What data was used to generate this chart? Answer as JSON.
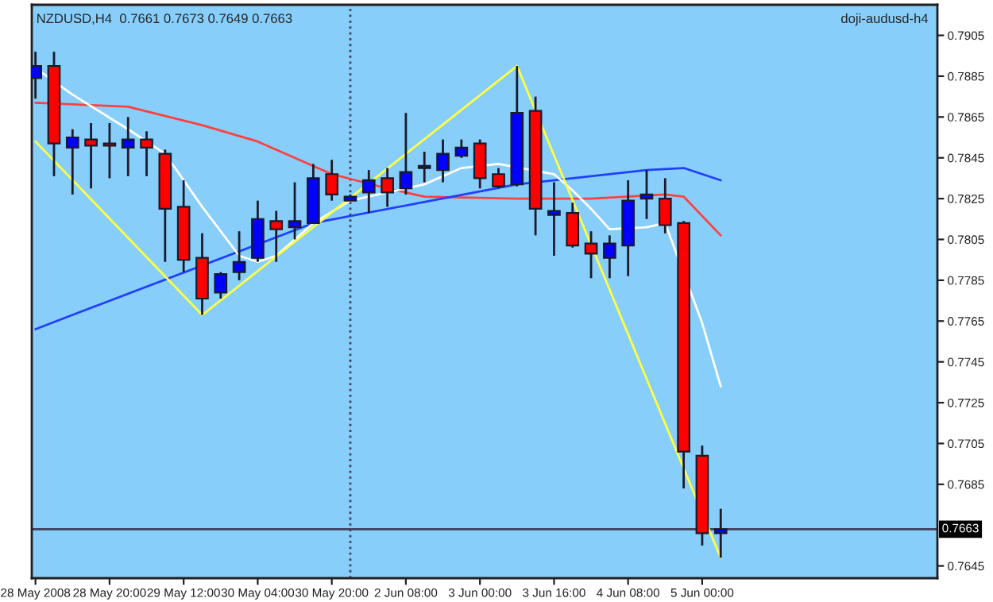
{
  "chart_data": {
    "type": "candlestick",
    "title": "NZDUSD,H4  0.7661 0.7673 0.7649 0.7663",
    "annotations": [
      "doji-audusd-h4"
    ],
    "categories": [
      "28 May 2008",
      null,
      null,
      null,
      "28 May 20:00",
      null,
      null,
      null,
      "29 May 12:00",
      null,
      null,
      null,
      "30 May 04:00",
      null,
      null,
      null,
      "30 May 20:00",
      null,
      null,
      null,
      "2 Jun 08:00",
      null,
      null,
      null,
      "3 Jun 00:00",
      null,
      null,
      null,
      "3 Jun 16:00",
      null,
      null,
      null,
      "4 Jun 08:00",
      null,
      null,
      null,
      "5 Jun 00:00",
      null
    ],
    "ohlc": [
      [
        0.7884,
        0.7897,
        0.7874,
        0.789
      ],
      [
        0.789,
        0.7897,
        0.7836,
        0.7852
      ],
      [
        0.785,
        0.7859,
        0.7827,
        0.7855
      ],
      [
        0.7854,
        0.7862,
        0.783,
        0.7851
      ],
      [
        0.7852,
        0.7862,
        0.7835,
        0.7851
      ],
      [
        0.785,
        0.7865,
        0.7836,
        0.7854
      ],
      [
        0.7854,
        0.7858,
        0.7836,
        0.785
      ],
      [
        0.7847,
        0.7849,
        0.7794,
        0.782
      ],
      [
        0.7821,
        0.7834,
        0.7789,
        0.7795
      ],
      [
        0.7796,
        0.7808,
        0.7768,
        0.7776
      ],
      [
        0.7779,
        0.7789,
        0.7776,
        0.7788
      ],
      [
        0.7789,
        0.7809,
        0.7785,
        0.7794
      ],
      [
        0.7796,
        0.7824,
        0.7794,
        0.7815
      ],
      [
        0.7814,
        0.7819,
        0.7794,
        0.781
      ],
      [
        0.7811,
        0.7833,
        0.7805,
        0.7814
      ],
      [
        0.7813,
        0.7842,
        0.7813,
        0.7835
      ],
      [
        0.7837,
        0.7844,
        0.7824,
        0.7827
      ],
      [
        0.7824,
        0.7827,
        0.7824,
        0.7826
      ],
      [
        0.7828,
        0.7839,
        0.7818,
        0.7834
      ],
      [
        0.7835,
        0.784,
        0.7821,
        0.7828
      ],
      [
        0.783,
        0.7867,
        0.7827,
        0.7838
      ],
      [
        0.784,
        0.7848,
        0.7833,
        0.7841
      ],
      [
        0.7839,
        0.7854,
        0.7833,
        0.7847
      ],
      [
        0.7846,
        0.7854,
        0.7845,
        0.785
      ],
      [
        0.7852,
        0.7854,
        0.783,
        0.7835
      ],
      [
        0.7837,
        0.784,
        0.783,
        0.7831
      ],
      [
        0.7832,
        0.789,
        0.7831,
        0.7867
      ],
      [
        0.7868,
        0.7875,
        0.7807,
        0.782
      ],
      [
        0.7817,
        0.7833,
        0.7797,
        0.7819
      ],
      [
        0.7818,
        0.7823,
        0.7801,
        0.7802
      ],
      [
        0.7803,
        0.7809,
        0.7786,
        0.7798
      ],
      [
        0.7796,
        0.7807,
        0.7786,
        0.7803
      ],
      [
        0.7802,
        0.7834,
        0.7787,
        0.7824
      ],
      [
        0.7825,
        0.7839,
        0.7815,
        0.7827
      ],
      [
        0.7825,
        0.7835,
        0.7808,
        0.7812
      ],
      [
        0.7813,
        0.7814,
        0.7683,
        0.7701
      ],
      [
        0.7699,
        0.7704,
        0.7655,
        0.7661
      ],
      [
        0.7661,
        0.7673,
        0.7649,
        0.7663
      ]
    ],
    "series": [
      {
        "type": "line",
        "color": "#ff4040",
        "values": [
          0.7872,
          null,
          null,
          null,
          null,
          0.787,
          null,
          null,
          null,
          0.7861,
          null,
          null,
          0.7853,
          null,
          null,
          null,
          0.7837,
          null,
          null,
          0.783,
          null,
          0.7826,
          null,
          null,
          null,
          null,
          0.7825,
          null,
          null,
          null,
          0.7825,
          null,
          null,
          null,
          0.7827,
          0.7826,
          null,
          0.7807
        ]
      },
      {
        "type": "line",
        "color": "#2040ff",
        "values": [
          0.7761,
          null,
          0.7768,
          null,
          null,
          null,
          null,
          null,
          null,
          null,
          null,
          null,
          null,
          null,
          null,
          0.7813,
          null,
          null,
          null,
          null,
          null,
          null,
          null,
          null,
          null,
          null,
          0.7832,
          null,
          null,
          null,
          0.7836,
          null,
          null,
          0.7839,
          null,
          0.784,
          null,
          0.7834
        ]
      },
      {
        "type": "line",
        "color": "#ffffff",
        "values": [
          0.7889,
          null,
          0.7876,
          null,
          null,
          0.7859,
          null,
          0.7847,
          null,
          0.7821,
          null,
          0.7797,
          0.7794,
          0.7797,
          null,
          0.7813,
          null,
          0.7824,
          null,
          null,
          null,
          0.7832,
          null,
          0.784,
          null,
          0.7842,
          null,
          null,
          0.7837,
          0.7829,
          0.782,
          0.781,
          null,
          0.7811,
          0.7813,
          null,
          0.7764,
          0.7733
        ]
      },
      {
        "type": "line",
        "color": "#ffff40",
        "values": [
          0.7853,
          null,
          null,
          null,
          null,
          null,
          null,
          null,
          null,
          0.7768,
          null,
          null,
          null,
          null,
          null,
          null,
          null,
          null,
          null,
          null,
          null,
          null,
          null,
          null,
          null,
          null,
          0.789,
          null,
          null,
          null,
          null,
          null,
          null,
          null,
          null,
          null,
          null,
          0.7649
        ]
      }
    ],
    "ref_lines": [
      {
        "axis": "y",
        "value": 0.7663,
        "label": "0.7663",
        "color": "#404060",
        "line_style": "solid"
      }
    ],
    "ylim": [
      0.7639,
      0.792
    ],
    "yticks": [
      0.7905,
      0.7885,
      0.7865,
      0.7845,
      0.7825,
      0.7805,
      0.7785,
      0.7765,
      0.7745,
      0.7725,
      0.7705,
      0.7685,
      0.7645
    ],
    "grid": false,
    "legend": false
  }
}
